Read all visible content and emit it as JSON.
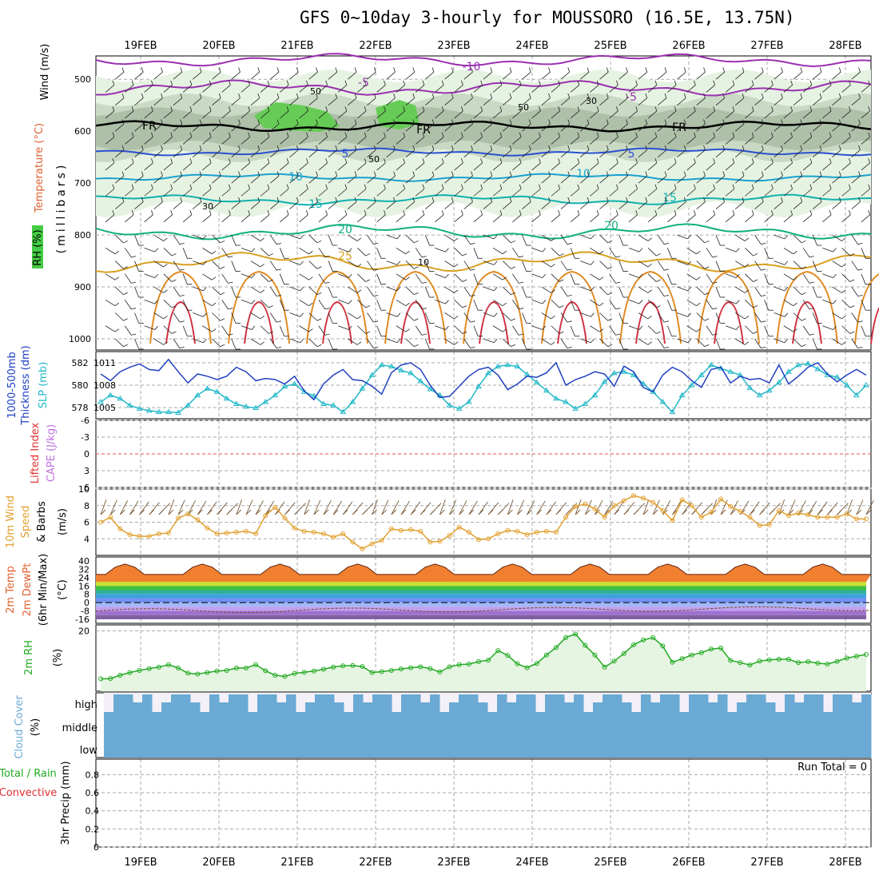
{
  "title": "GFS 0~10day 3-hourly for MOUSSORO (16.5E, 13.75N)",
  "days": [
    "19FEB",
    "20FEB",
    "21FEB",
    "22FEB",
    "23FEB",
    "24FEB",
    "25FEB",
    "26FEB",
    "27FEB",
    "28FEB"
  ],
  "colors": {
    "wind": "#000000",
    "temp": "#e06030",
    "rh": "#22cc22",
    "thick": "#2040c0",
    "slp": "#22b8c8",
    "li": "#e03030",
    "cape": "#c070e0",
    "wspd": "#e0a030",
    "rh2m": "#22aa22",
    "cloud": "#6aaad4",
    "rain": "#22aa22",
    "conv": "#e03030"
  },
  "panels": {
    "upper": {
      "ylabel_wind": "Wind (m/s)",
      "ylabel_temp": "Temperature (°C)",
      "ylabel_rh": "RH (%)",
      "ylabel_mb": "(millibars)",
      "yticks": [
        "500",
        "600",
        "700",
        "800",
        "900",
        "1000"
      ],
      "isotherm_labels": [
        "-10",
        "-5",
        "-5",
        "FR",
        "FR",
        "FR",
        "5",
        "5",
        "10",
        "10",
        "15",
        "15",
        "20",
        "20",
        "25"
      ],
      "rh_labels": [
        "50",
        "50",
        "30",
        "50",
        "30",
        "10"
      ]
    },
    "thick": {
      "ylabel_a": "1000-500mb",
      "ylabel_b": "Thickness (dm)",
      "ylabel_c": "SLP (mb)",
      "left_ticks": [
        "582",
        "580",
        "578"
      ],
      "right_ticks": [
        "1011",
        "1008",
        "1005"
      ]
    },
    "li": {
      "ylabel_a": "Lifted Index",
      "ylabel_b": "CAPE (J/kg)",
      "ticks": [
        "-6",
        "-3",
        "0",
        "3",
        "6"
      ]
    },
    "wind10": {
      "ylabel_a": "10m Wind",
      "ylabel_b": "Speed",
      "ylabel_c": "& Barbs",
      "ylabel_d": "(m/s)",
      "ticks": [
        "10",
        "8",
        "6",
        "4"
      ]
    },
    "temp2m": {
      "ylabel_a": "2m Temp",
      "ylabel_b": "2m DewPt",
      "ylabel_c": "(6hr Min/Max)",
      "ylabel_d": "(°C)",
      "ticks": [
        "40",
        "32",
        "24",
        "16",
        "8",
        "0",
        "-8",
        "-16"
      ]
    },
    "rh2m": {
      "ylabel_a": "2m RH",
      "ylabel_b": "(%)",
      "ticks": [
        "20"
      ]
    },
    "cloud": {
      "ylabel_a": "Cloud Cover",
      "ylabel_b": "(%)",
      "levels": [
        "high",
        "middle",
        "low"
      ]
    },
    "precip": {
      "ylabel_a": "Total / Rain",
      "ylabel_b": "Convective",
      "ylabel_c": "3hr Precip (mm)",
      "ticks": [
        "0.8",
        "0.6",
        "0.4",
        "0.2",
        "0"
      ],
      "run_total": "Run Total = 0"
    }
  },
  "chart_data": [
    {
      "type": "line",
      "name": "1000-500mb thickness",
      "y_unit": "dm",
      "ylim": [
        577,
        583
      ],
      "x_unit": "3-hour step",
      "values": [
        581.0,
        580.4,
        581.2,
        581.6,
        581.9,
        581.4,
        581.3,
        582.3,
        581.2,
        580.2,
        581.0,
        580.8,
        580.5,
        580.8,
        581.6,
        581.2,
        580.4,
        580.6,
        580.5,
        580.1,
        580.8,
        579.5,
        578.7,
        580.1,
        580.9,
        581.4,
        580.5,
        580.4,
        579.9,
        579.2,
        581.1,
        581.8,
        582.0,
        581.4,
        580.0,
        578.9,
        579.0,
        579.9,
        580.8,
        581.4,
        581.6,
        580.9,
        579.6,
        580.1,
        580.8,
        580.7,
        581.1,
        582.0,
        580.0,
        580.5,
        580.8,
        581.2,
        581.0,
        579.9,
        581.7,
        581.2,
        579.8,
        579.4,
        580.9,
        581.6,
        581.2,
        580.4,
        579.8,
        581.4,
        581.6,
        580.2,
        580.8,
        580.5,
        580.6,
        580.2,
        581.8,
        580.1,
        580.8,
        581.6,
        582.0,
        581.0,
        580.3,
        580.9,
        581.4,
        580.9
      ]
    },
    {
      "type": "line",
      "name": "SLP",
      "y_unit": "mb",
      "ylim": [
        1003,
        1013
      ],
      "x_unit": "3-hour step",
      "values": [
        1005.5,
        1006.5,
        1006.0,
        1005.0,
        1004.5,
        1004.2,
        1004.0,
        1004.0,
        1003.9,
        1005.0,
        1006.5,
        1007.5,
        1007.0,
        1006.0,
        1005.2,
        1004.8,
        1004.6,
        1005.5,
        1006.5,
        1007.8,
        1008.2,
        1007.0,
        1006.4,
        1005.2,
        1005.0,
        1004.0,
        1005.5,
        1007.5,
        1009.5,
        1011.0,
        1010.8,
        1010.2,
        1009.8,
        1008.6,
        1007.4,
        1006.5,
        1005.0,
        1004.5,
        1005.5,
        1007.8,
        1009.8,
        1010.8,
        1011.0,
        1010.8,
        1009.6,
        1008.4,
        1007.2,
        1006.0,
        1005.5,
        1004.5,
        1005.2,
        1006.5,
        1008.5,
        1009.8,
        1010.0,
        1009.5,
        1008.2,
        1007.0,
        1005.5,
        1004.0,
        1006.5,
        1008.0,
        1009.5,
        1011.0,
        1010.5,
        1010.0,
        1009.5,
        1007.6,
        1006.5,
        1007.2,
        1008.4,
        1010.0,
        1011.0,
        1011.2,
        1010.4,
        1009.5,
        1009.2,
        1008.0,
        1006.5,
        1008.0
      ]
    },
    {
      "type": "line",
      "name": "10m wind speed",
      "y_unit": "m/s",
      "ylim": [
        2,
        10
      ],
      "x_unit": "3-hour step",
      "values": [
        6.0,
        6.6,
        5.2,
        4.5,
        4.3,
        4.3,
        4.6,
        4.7,
        6.5,
        7.0,
        6.3,
        5.3,
        4.6,
        4.7,
        4.8,
        4.9,
        4.6,
        6.8,
        7.8,
        6.5,
        5.3,
        4.9,
        4.8,
        4.6,
        4.2,
        4.6,
        3.6,
        2.8,
        3.4,
        3.8,
        5.2,
        5.0,
        5.1,
        4.9,
        3.6,
        3.7,
        4.4,
        5.4,
        4.8,
        3.9,
        4.0,
        4.6,
        5.0,
        4.9,
        4.5,
        4.8,
        4.9,
        4.8,
        6.6,
        7.9,
        8.2,
        7.6,
        6.6,
        8.0,
        8.6,
        9.2,
        8.9,
        8.4,
        7.4,
        6.2,
        8.7,
        8.0,
        6.6,
        7.2,
        8.8,
        7.9,
        7.3,
        6.6,
        5.6,
        5.7,
        7.4,
        6.8,
        7.1,
        6.9,
        6.6,
        6.6,
        6.6,
        7.0,
        6.4,
        6.4
      ]
    },
    {
      "type": "line",
      "name": "2m RH",
      "y_unit": "%",
      "ylim": [
        0,
        22
      ],
      "x_unit": "3-hour step",
      "values": [
        4.1,
        4.2,
        5.3,
        6.2,
        6.9,
        7.5,
        8.0,
        8.8,
        7.7,
        6.0,
        5.7,
        6.2,
        6.7,
        6.9,
        7.7,
        7.7,
        8.8,
        6.8,
        5.3,
        4.9,
        5.9,
        6.3,
        6.7,
        7.3,
        8.0,
        8.4,
        8.5,
        8.2,
        6.2,
        6.5,
        6.9,
        7.4,
        7.8,
        8.1,
        7.5,
        6.4,
        8.1,
        8.8,
        9.0,
        9.8,
        10.3,
        13.5,
        11.9,
        9.1,
        7.8,
        9.2,
        12.0,
        14.5,
        17.8,
        19.0,
        15.2,
        12.0,
        8.0,
        10.0,
        12.5,
        15.4,
        17.0,
        17.8,
        15.0,
        9.6,
        10.8,
        12.0,
        12.8,
        14.0,
        14.3,
        10.2,
        9.5,
        8.7,
        10.0,
        10.4,
        10.6,
        10.6,
        9.5,
        9.8,
        9.3,
        9.0,
        9.9,
        11.0,
        11.6,
        12.2
      ]
    }
  ]
}
